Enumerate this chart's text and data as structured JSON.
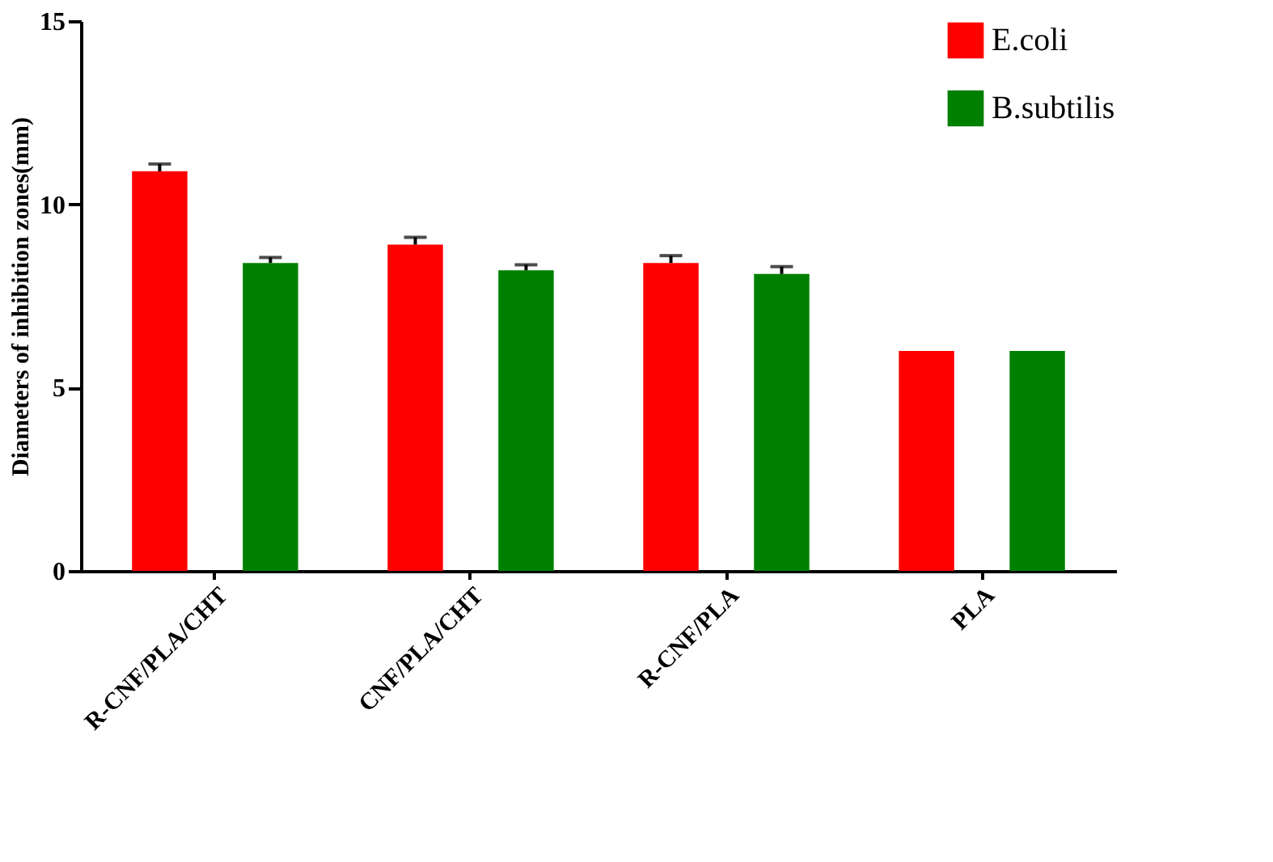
{
  "chart_data": {
    "type": "bar",
    "ylabel": "Diameters of inhibition zones(mm)",
    "categories": [
      "R-CNF/PLA/CHT",
      "CNF/PLA/CHT",
      "R-CNF/PLA",
      "PLA"
    ],
    "series": [
      {
        "name": "E.coli",
        "color": "#ff0000",
        "values": [
          10.9,
          8.9,
          8.4,
          6.0
        ],
        "errors": [
          [
            10.9,
            11.1
          ],
          [
            8.9,
            9.1
          ],
          [
            8.4,
            8.6
          ],
          null
        ]
      },
      {
        "name": "B.subtilis",
        "color": "#008000",
        "values": [
          8.4,
          8.2,
          8.1,
          6.0
        ],
        "errors": [
          [
            8.4,
            8.55
          ],
          [
            8.2,
            8.35
          ],
          [
            8.1,
            8.3
          ],
          null
        ]
      }
    ],
    "ylim": [
      0,
      15
    ],
    "yticks": [
      0,
      5,
      10,
      15
    ],
    "grid": false,
    "legend": "top right"
  }
}
